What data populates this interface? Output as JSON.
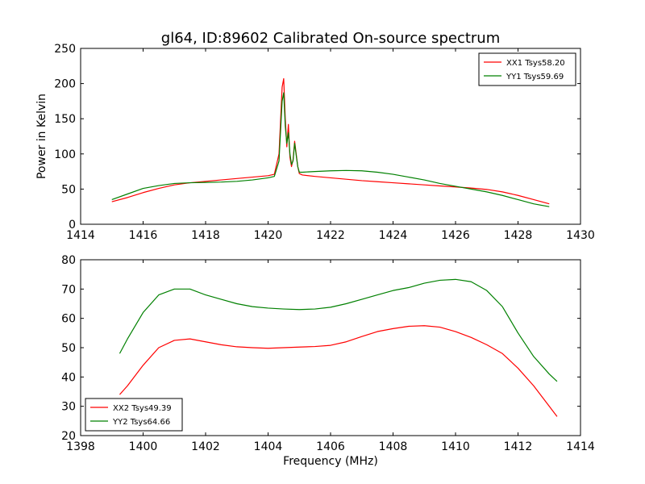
{
  "figure": {
    "title": "gl64, ID:89602 Calibrated On-source spectrum"
  },
  "chart_data": [
    {
      "type": "line",
      "title": "gl64, ID:89602 Calibrated On-source spectrum",
      "xlabel": "",
      "ylabel": "Power in Kelvin",
      "xlim": [
        1414,
        1430
      ],
      "ylim": [
        0,
        250
      ],
      "xticks": [
        1414,
        1416,
        1418,
        1420,
        1422,
        1424,
        1426,
        1428,
        1430
      ],
      "yticks": [
        0,
        50,
        100,
        150,
        200,
        250
      ],
      "grid": false,
      "legend_position": "top-right",
      "series": [
        {
          "name": "XX1 Tsys58.20",
          "color": "#ff0000",
          "x": [
            1415.0,
            1415.5,
            1416.0,
            1416.5,
            1417.0,
            1417.5,
            1418.0,
            1418.5,
            1419.0,
            1419.5,
            1420.0,
            1420.2,
            1420.35,
            1420.45,
            1420.5,
            1420.55,
            1420.6,
            1420.65,
            1420.7,
            1420.75,
            1420.8,
            1420.85,
            1420.9,
            1420.95,
            1421.0,
            1421.1,
            1421.5,
            1422.0,
            1422.5,
            1423.0,
            1423.5,
            1424.0,
            1424.5,
            1425.0,
            1425.5,
            1426.0,
            1426.5,
            1427.0,
            1427.5,
            1428.0,
            1428.5,
            1429.0
          ],
          "values": [
            32,
            38,
            45,
            51,
            56,
            59,
            61,
            63,
            65,
            67,
            69,
            71,
            100,
            195,
            207,
            150,
            110,
            142,
            95,
            82,
            92,
            118,
            100,
            82,
            72,
            70,
            68,
            66,
            64,
            62,
            60.5,
            59,
            57.5,
            56,
            54.5,
            53,
            51.5,
            49.5,
            46,
            41,
            35,
            29
          ]
        },
        {
          "name": "YY1 Tsys59.69",
          "color": "#008000",
          "x": [
            1415.0,
            1415.5,
            1416.0,
            1416.5,
            1417.0,
            1417.5,
            1418.0,
            1418.5,
            1419.0,
            1419.5,
            1420.0,
            1420.2,
            1420.35,
            1420.45,
            1420.5,
            1420.55,
            1420.6,
            1420.65,
            1420.7,
            1420.75,
            1420.8,
            1420.85,
            1420.9,
            1420.95,
            1421.0,
            1421.1,
            1421.5,
            1422.0,
            1422.5,
            1423.0,
            1423.5,
            1424.0,
            1424.5,
            1425.0,
            1425.5,
            1426.0,
            1426.5,
            1427.0,
            1427.5,
            1428.0,
            1428.5,
            1429.0
          ],
          "values": [
            35,
            43,
            51,
            55,
            58,
            59,
            59.5,
            60,
            61,
            63,
            66,
            68,
            90,
            175,
            187,
            140,
            115,
            130,
            100,
            85,
            90,
            115,
            98,
            82,
            74,
            74,
            75,
            76,
            76.5,
            76,
            74,
            71,
            67,
            63,
            58,
            54,
            50,
            46,
            41,
            35,
            29,
            25
          ]
        }
      ]
    },
    {
      "type": "line",
      "title": "",
      "xlabel": "Frequency (MHz)",
      "ylabel": "",
      "xlim": [
        1398,
        1414
      ],
      "ylim": [
        20,
        80
      ],
      "xticks": [
        1398,
        1400,
        1402,
        1404,
        1406,
        1408,
        1410,
        1412,
        1414
      ],
      "yticks": [
        20,
        30,
        40,
        50,
        60,
        70,
        80
      ],
      "grid": false,
      "legend_position": "bottom-left",
      "series": [
        {
          "name": "XX2 Tsys49.39",
          "color": "#ff0000",
          "x": [
            1399.25,
            1399.5,
            1400.0,
            1400.5,
            1401.0,
            1401.5,
            1402.0,
            1402.5,
            1403.0,
            1403.5,
            1404.0,
            1404.5,
            1405.0,
            1405.5,
            1406.0,
            1406.5,
            1407.0,
            1407.5,
            1408.0,
            1408.5,
            1409.0,
            1409.5,
            1410.0,
            1410.5,
            1411.0,
            1411.5,
            1412.0,
            1412.5,
            1413.0,
            1413.25
          ],
          "values": [
            34,
            37,
            44,
            50,
            52.5,
            53,
            52,
            51,
            50.3,
            50,
            49.8,
            50,
            50.2,
            50.4,
            50.8,
            52,
            53.8,
            55.5,
            56.5,
            57.3,
            57.5,
            57,
            55.5,
            53.5,
            51,
            48,
            43,
            37,
            30,
            26.5
          ]
        },
        {
          "name": "YY2 Tsys64.66",
          "color": "#008000",
          "x": [
            1399.25,
            1399.5,
            1400.0,
            1400.5,
            1401.0,
            1401.5,
            1402.0,
            1402.5,
            1403.0,
            1403.5,
            1404.0,
            1404.5,
            1405.0,
            1405.5,
            1406.0,
            1406.5,
            1407.0,
            1407.5,
            1408.0,
            1408.5,
            1409.0,
            1409.5,
            1410.0,
            1410.5,
            1411.0,
            1411.5,
            1412.0,
            1412.5,
            1413.0,
            1413.25
          ],
          "values": [
            48,
            53,
            62,
            68,
            70,
            70,
            68,
            66.5,
            65,
            64,
            63.5,
            63.2,
            63,
            63.2,
            63.8,
            65,
            66.5,
            68,
            69.5,
            70.5,
            72,
            73,
            73.3,
            72.5,
            69.5,
            64,
            55,
            47,
            41,
            38.5
          ]
        }
      ]
    }
  ]
}
